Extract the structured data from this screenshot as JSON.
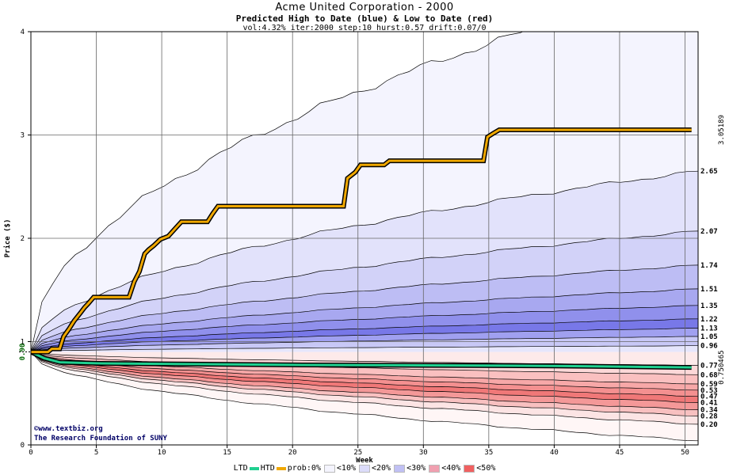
{
  "title": "Acme United Corporation - 2000",
  "subtitle": "Predicted High to Date (blue) &  Low to Date (red)",
  "params": "vol:4.32% iter:2000 step:10 hurst:0.57 drift:0.07/0",
  "watermark": {
    "line1": "©www.textbiz.org",
    "line2": "The Research Foundation of SUNY"
  },
  "colors": {
    "htd": "#f0a800",
    "ltd": "#20d090",
    "start_label": "#006400",
    "htd_label": "#a07800",
    "ltd_label": "#008a5a"
  },
  "legend": {
    "ltd": "LTD",
    "htd": "HTD",
    "prob": "prob:0%",
    "items": [
      {
        "label": "<10%",
        "color": "#f4f4fe"
      },
      {
        "label": "<20%",
        "color": "#dcdcfa"
      },
      {
        "label": "<30%",
        "color": "#c0c0f4"
      },
      {
        "label": "<40%",
        "color": "#f0a0b0"
      },
      {
        "label": "<50%",
        "color": "#f06060"
      }
    ]
  },
  "chart_data": {
    "type": "area",
    "xlabel": "Week",
    "ylabel": "Price ($)",
    "xlim": [
      0,
      51
    ],
    "ylim": [
      0,
      4
    ],
    "x_ticks": [
      0,
      5,
      10,
      15,
      20,
      25,
      30,
      35,
      40,
      45,
      50
    ],
    "y_ticks": [
      0,
      1,
      2,
      3,
      4
    ],
    "start_price": 0.9,
    "start_label": "0.90",
    "htd_end_label": "3.05189",
    "ltd_end_label": "0.750465",
    "high_bands": [
      {
        "end": 4.5,
        "fill": "#f4f4fe"
      },
      {
        "end": 2.65,
        "fill": "#e2e2fb"
      },
      {
        "end": 2.07,
        "fill": "#d2d2f8"
      },
      {
        "end": 1.74,
        "fill": "#bdbdf4"
      },
      {
        "end": 1.51,
        "fill": "#a8a8f0"
      },
      {
        "end": 1.35,
        "fill": "#9090ec"
      },
      {
        "end": 1.22,
        "fill": "#7878e8"
      },
      {
        "end": 1.13,
        "fill": "#a0a0f0"
      },
      {
        "end": 1.05,
        "fill": "#c8c8f6"
      },
      {
        "end": 0.96,
        "fill": "#e6e6fc"
      }
    ],
    "low_bands": [
      {
        "end": 0.77,
        "fill": "#fdeaea"
      },
      {
        "end": 0.68,
        "fill": "#fcd8d8"
      },
      {
        "end": 0.59,
        "fill": "#fac0c0"
      },
      {
        "end": 0.53,
        "fill": "#f7a8a8"
      },
      {
        "end": 0.47,
        "fill": "#f49090"
      },
      {
        "end": 0.41,
        "fill": "#f07878"
      },
      {
        "end": 0.34,
        "fill": "#f49898"
      },
      {
        "end": 0.28,
        "fill": "#f8c0c0"
      },
      {
        "end": 0.2,
        "fill": "#fce4e4"
      },
      {
        "end": 0.04,
        "fill": "#fff6f6"
      }
    ],
    "right_labels": [
      "2.65",
      "2.07",
      "1.74",
      "1.51",
      "1.35",
      "1.22",
      "1.13",
      "1.05",
      "0.96",
      "0.77",
      "0.68",
      "0.59",
      "0.53",
      "0.47",
      "0.41",
      "0.34",
      "0.28",
      "0.20"
    ],
    "htd_series": [
      [
        0,
        0.9
      ],
      [
        1.3,
        0.9
      ],
      [
        1.6,
        0.93
      ],
      [
        2.2,
        0.93
      ],
      [
        2.5,
        1.05
      ],
      [
        2.9,
        1.12
      ],
      [
        3.3,
        1.2
      ],
      [
        3.8,
        1.28
      ],
      [
        4.1,
        1.33
      ],
      [
        4.4,
        1.37
      ],
      [
        4.8,
        1.43
      ],
      [
        7.5,
        1.43
      ],
      [
        7.9,
        1.58
      ],
      [
        8.3,
        1.68
      ],
      [
        8.7,
        1.85
      ],
      [
        9.0,
        1.89
      ],
      [
        9.4,
        1.93
      ],
      [
        9.9,
        1.99
      ],
      [
        10.5,
        2.02
      ],
      [
        11.0,
        2.09
      ],
      [
        11.5,
        2.16
      ],
      [
        13.5,
        2.16
      ],
      [
        13.9,
        2.24
      ],
      [
        14.3,
        2.31
      ],
      [
        23.9,
        2.31
      ],
      [
        24.2,
        2.58
      ],
      [
        24.8,
        2.64
      ],
      [
        25.2,
        2.71
      ],
      [
        27.0,
        2.71
      ],
      [
        27.4,
        2.75
      ],
      [
        34.6,
        2.75
      ],
      [
        34.9,
        2.98
      ],
      [
        35.4,
        3.02
      ],
      [
        35.8,
        3.05
      ],
      [
        50.5,
        3.05
      ]
    ],
    "ltd_series": [
      [
        0,
        0.9
      ],
      [
        0.5,
        0.87
      ],
      [
        1.0,
        0.84
      ],
      [
        1.6,
        0.82
      ],
      [
        2.2,
        0.8
      ],
      [
        5.0,
        0.79
      ],
      [
        10,
        0.785
      ],
      [
        20,
        0.775
      ],
      [
        30,
        0.77
      ],
      [
        40,
        0.765
      ],
      [
        50.5,
        0.75
      ]
    ]
  }
}
